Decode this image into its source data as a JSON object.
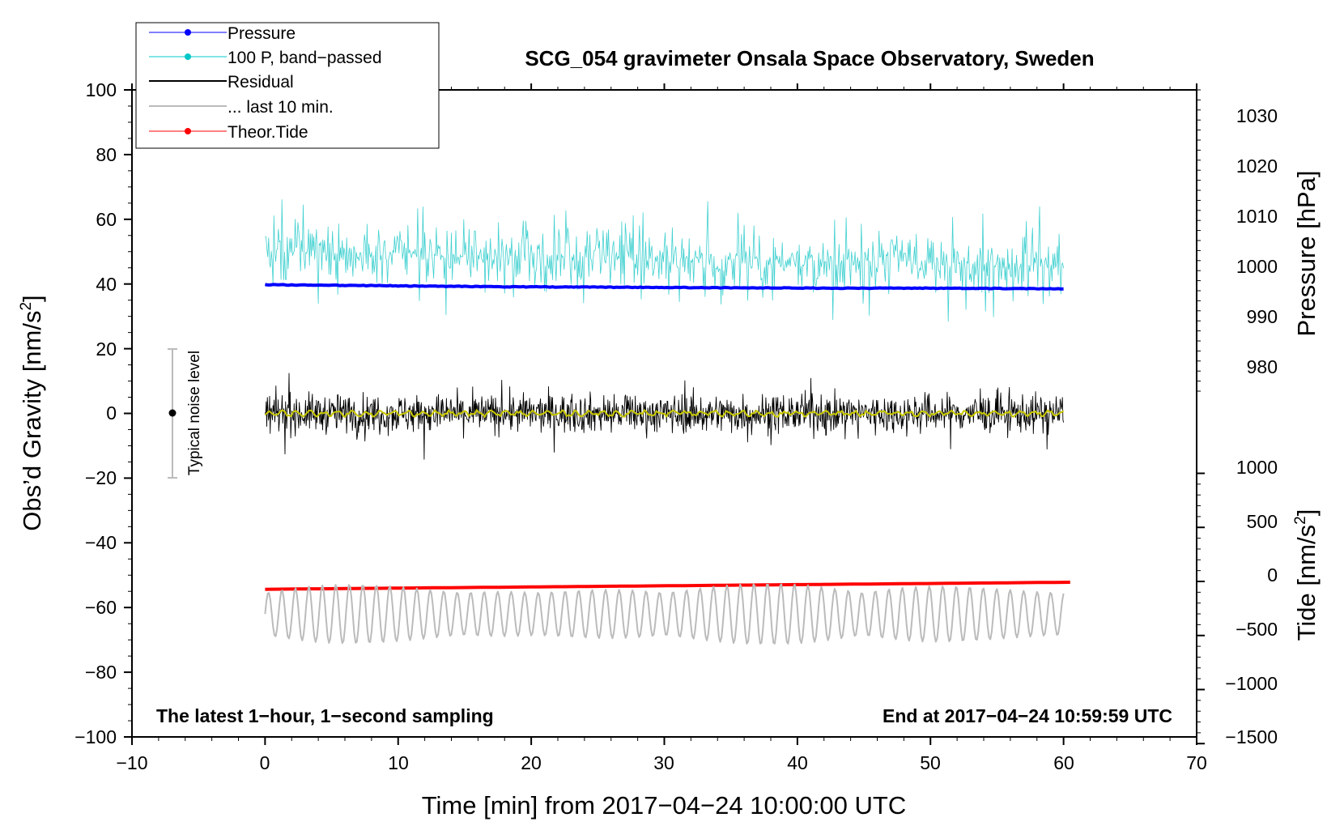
{
  "chart_data": {
    "type": "line",
    "title": "SCG_054 gravimeter Onsala Space Observatory, Sweden",
    "xlabel": "Time [min] from 2017−04−24 10:00:00 UTC",
    "ylabel_left": "Obs’d Gravity [nm/s",
    "ylabel_left_sup": "2",
    "ylabel_left_end": "]",
    "ylabel_right_pressure": "Pressure [hPa]",
    "ylabel_right_tide": "Tide [nm/s",
    "ylabel_right_tide_sup": "2",
    "ylabel_right_tide_end": "]",
    "xlim": [
      -10,
      70
    ],
    "ylim": [
      -100,
      100
    ],
    "pressure_lim": [
      972,
      1035
    ],
    "tide_lim": [
      -1500,
      1000
    ],
    "x_ticks": [
      "−10",
      "0",
      "10",
      "20",
      "30",
      "40",
      "50",
      "60",
      "70"
    ],
    "y_ticks": [
      "100",
      "80",
      "60",
      "40",
      "20",
      "0",
      "−20",
      "−40",
      "−60",
      "−80",
      "−100"
    ],
    "pressure_ticks": [
      "1030",
      "1020",
      "1010",
      "1000",
      "990",
      "980"
    ],
    "tide_ticks": [
      "1000",
      "500",
      "0",
      "−500",
      "−1000",
      "−1500"
    ],
    "note_left": "The latest 1−hour, 1−second sampling",
    "note_right": "End at 2017−04−24 10:59:59 UTC",
    "noise_label": "Typical noise level",
    "noise_bar": {
      "x": -7,
      "center": 0,
      "low": -20,
      "high": 20
    },
    "legend": [
      {
        "label": "Pressure",
        "color": "#0000ff"
      },
      {
        "label": "100 P, band−passed",
        "color": "#00c8c8"
      },
      {
        "label": "Residual",
        "color": "#000000"
      },
      {
        "label": "... last 10 min.",
        "color": "#bbbbbb"
      },
      {
        "label": "Theor.Tide",
        "color": "#ff0000"
      }
    ],
    "series": [
      {
        "name": "Pressure",
        "color": "#0000ff",
        "x_range": [
          0,
          60
        ],
        "values_hpa": [
          996.2,
          996.0,
          995.8,
          995.7,
          995.6,
          995.5,
          995.5,
          995.4
        ]
      },
      {
        "name": "100 P, band-passed",
        "color": "#40d0d0",
        "x_range": [
          0,
          60
        ],
        "base": 50,
        "amplitude_nms2": 12
      },
      {
        "name": "Residual",
        "color": "#000000",
        "x_range": [
          0,
          60
        ],
        "base": 0,
        "amplitude_nms2": 6
      },
      {
        "name": "Residual smoothed",
        "color": "#c8c800",
        "x_range": [
          0,
          60
        ],
        "base": 0,
        "amplitude_nms2": 1
      },
      {
        "name": "Theor.Tide",
        "color": "#ff0000",
        "x_range": [
          0,
          60.5
        ],
        "values_nms2": [
          -5,
          60
        ]
      },
      {
        "name": "... last 10 min.",
        "color": "#bbbbbb",
        "x_range": [
          0,
          60
        ],
        "base": -62,
        "amplitude_nms2": 6
      }
    ]
  }
}
